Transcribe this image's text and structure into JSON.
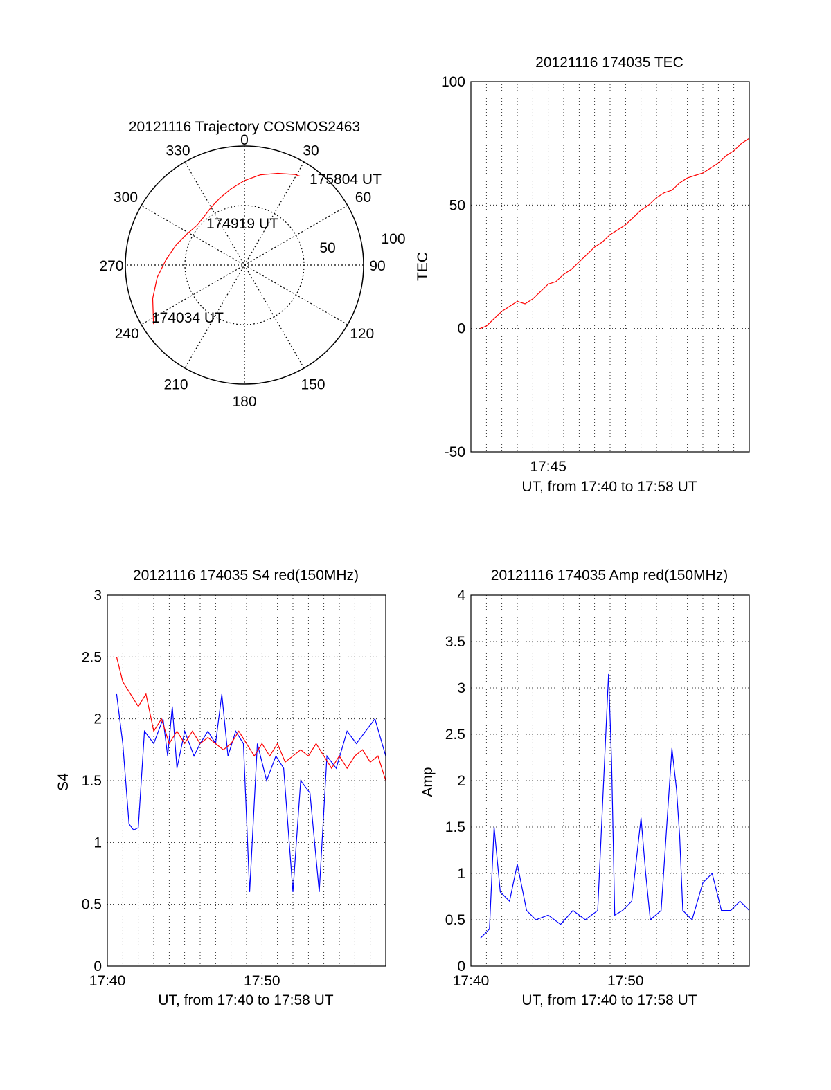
{
  "chart_data": [
    {
      "type": "polar",
      "title": "20121116 Trajectory COSMOS2463",
      "azimuth_labels": [
        "0",
        "30",
        "60",
        "90",
        "120",
        "150",
        "180",
        "210",
        "240",
        "270",
        "300",
        "330"
      ],
      "radius_labels": [
        "50",
        "100"
      ],
      "series": [
        {
          "color": "#ff0000",
          "az": [
            237,
            250,
            262,
            274,
            286,
            298,
            310,
            320,
            330,
            340,
            350,
            0,
            10,
            20,
            29,
            32
          ],
          "zen": [
            91,
            82,
            74,
            66,
            60,
            55,
            52,
            53,
            56,
            60,
            65,
            71,
            77,
            82,
            87,
            88
          ]
        }
      ],
      "annotations": [
        "175804 UT",
        "174919 UT",
        "174034 UT"
      ]
    },
    {
      "type": "line",
      "title": "20121116 174035 TEC",
      "xlabel": "UT, from 17:40 to 17:58 UT",
      "ylabel": "TEC",
      "xlim": [
        0,
        18
      ],
      "ylim": [
        -50,
        100
      ],
      "xtick_labels": [
        "17:45"
      ],
      "ytick_labels": [
        "-50",
        "0",
        "50",
        "100"
      ],
      "series": [
        {
          "color": "#ff0000",
          "x": [
            0.58,
            1,
            1.5,
            2,
            2.5,
            3,
            3.5,
            4,
            4.5,
            5,
            5.5,
            6,
            6.5,
            7,
            7.5,
            8,
            8.5,
            9,
            9.5,
            10,
            10.5,
            11,
            11.5,
            12,
            12.5,
            13,
            13.5,
            14,
            14.5,
            15,
            15.5,
            16,
            16.5,
            17,
            17.5,
            18
          ],
          "y": [
            0,
            1,
            4,
            7,
            9,
            11,
            10,
            12,
            15,
            18,
            19,
            22,
            24,
            27,
            30,
            33,
            35,
            38,
            40,
            42,
            45,
            48,
            50,
            53,
            55,
            56,
            59,
            61,
            62,
            63,
            65,
            67,
            70,
            72,
            75,
            77
          ]
        }
      ]
    },
    {
      "type": "line",
      "title": "20121116 174035 S4 red(150MHz)",
      "xlabel": "UT, from 17:40 to 17:58 UT",
      "ylabel": "S4",
      "xlim": [
        0,
        18
      ],
      "ylim": [
        0,
        3
      ],
      "xtick_labels": [
        "17:40",
        "17:50"
      ],
      "ytick_labels": [
        "0",
        "0.5",
        "1",
        "1.5",
        "2",
        "2.5",
        "3"
      ],
      "series": [
        {
          "color": "#0000ff",
          "x": [
            0.6,
            1.0,
            1.4,
            1.7,
            2.0,
            2.4,
            3.0,
            3.6,
            3.9,
            4.2,
            4.5,
            5.0,
            5.6,
            6.0,
            6.5,
            7.0,
            7.4,
            7.8,
            8.3,
            8.8,
            9.2,
            9.7,
            10.3,
            10.9,
            11.4,
            12.0,
            12.5,
            13.1,
            13.7,
            14.2,
            14.8,
            15.5,
            16.1,
            16.7,
            17.3,
            18.0
          ],
          "y": [
            2.2,
            1.8,
            1.15,
            1.1,
            1.12,
            1.9,
            1.8,
            2.0,
            1.7,
            2.1,
            1.6,
            1.9,
            1.7,
            1.8,
            1.9,
            1.8,
            2.2,
            1.7,
            1.9,
            1.8,
            0.6,
            1.8,
            1.5,
            1.7,
            1.6,
            0.6,
            1.5,
            1.4,
            0.6,
            1.7,
            1.6,
            1.9,
            1.8,
            1.9,
            2.0,
            1.7
          ]
        },
        {
          "color": "#ff0000",
          "x": [
            0.6,
            1.0,
            1.5,
            2.0,
            2.5,
            3.0,
            3.5,
            4.0,
            4.5,
            5.0,
            5.5,
            6.0,
            6.5,
            7.0,
            7.5,
            8.0,
            8.5,
            9.0,
            9.5,
            10.0,
            10.5,
            11.0,
            11.5,
            12.0,
            12.5,
            13.0,
            13.5,
            14.0,
            14.5,
            15.0,
            15.5,
            16.0,
            16.5,
            17.0,
            17.5,
            18.0
          ],
          "y": [
            2.5,
            2.3,
            2.2,
            2.1,
            2.2,
            1.9,
            2.0,
            1.8,
            1.9,
            1.8,
            1.9,
            1.8,
            1.85,
            1.8,
            1.75,
            1.8,
            1.9,
            1.8,
            1.7,
            1.8,
            1.7,
            1.8,
            1.65,
            1.7,
            1.75,
            1.7,
            1.8,
            1.7,
            1.6,
            1.7,
            1.6,
            1.7,
            1.75,
            1.65,
            1.7,
            1.5
          ]
        }
      ]
    },
    {
      "type": "line",
      "title": "20121116 174035 Amp red(150MHz)",
      "xlabel": "UT, from 17:40 to 17:58 UT",
      "ylabel": "Amp",
      "xlim": [
        0,
        18
      ],
      "ylim": [
        0,
        4
      ],
      "xtick_labels": [
        "17:40",
        "17:50"
      ],
      "ytick_labels": [
        "0",
        "0.5",
        "1",
        "1.5",
        "2",
        "2.5",
        "3",
        "3.5",
        "4"
      ],
      "series": [
        {
          "color": "#0000ff",
          "x": [
            0.6,
            1.2,
            1.5,
            1.9,
            2.5,
            3.0,
            3.6,
            4.2,
            5.0,
            5.8,
            6.6,
            7.4,
            8.2,
            8.9,
            9.1,
            9.3,
            9.8,
            10.4,
            11.0,
            11.3,
            11.6,
            12.3,
            13.0,
            13.3,
            13.5,
            13.7,
            14.3,
            15.0,
            15.6,
            16.2,
            16.8,
            17.4,
            18.0
          ],
          "y": [
            0.3,
            0.4,
            1.5,
            0.8,
            0.7,
            1.1,
            0.6,
            0.5,
            0.55,
            0.45,
            0.6,
            0.5,
            0.6,
            3.15,
            2.2,
            0.55,
            0.6,
            0.7,
            1.6,
            1.0,
            0.5,
            0.6,
            2.35,
            1.9,
            1.4,
            0.6,
            0.5,
            0.9,
            1.0,
            0.6,
            0.6,
            0.7,
            0.6
          ]
        }
      ]
    }
  ]
}
